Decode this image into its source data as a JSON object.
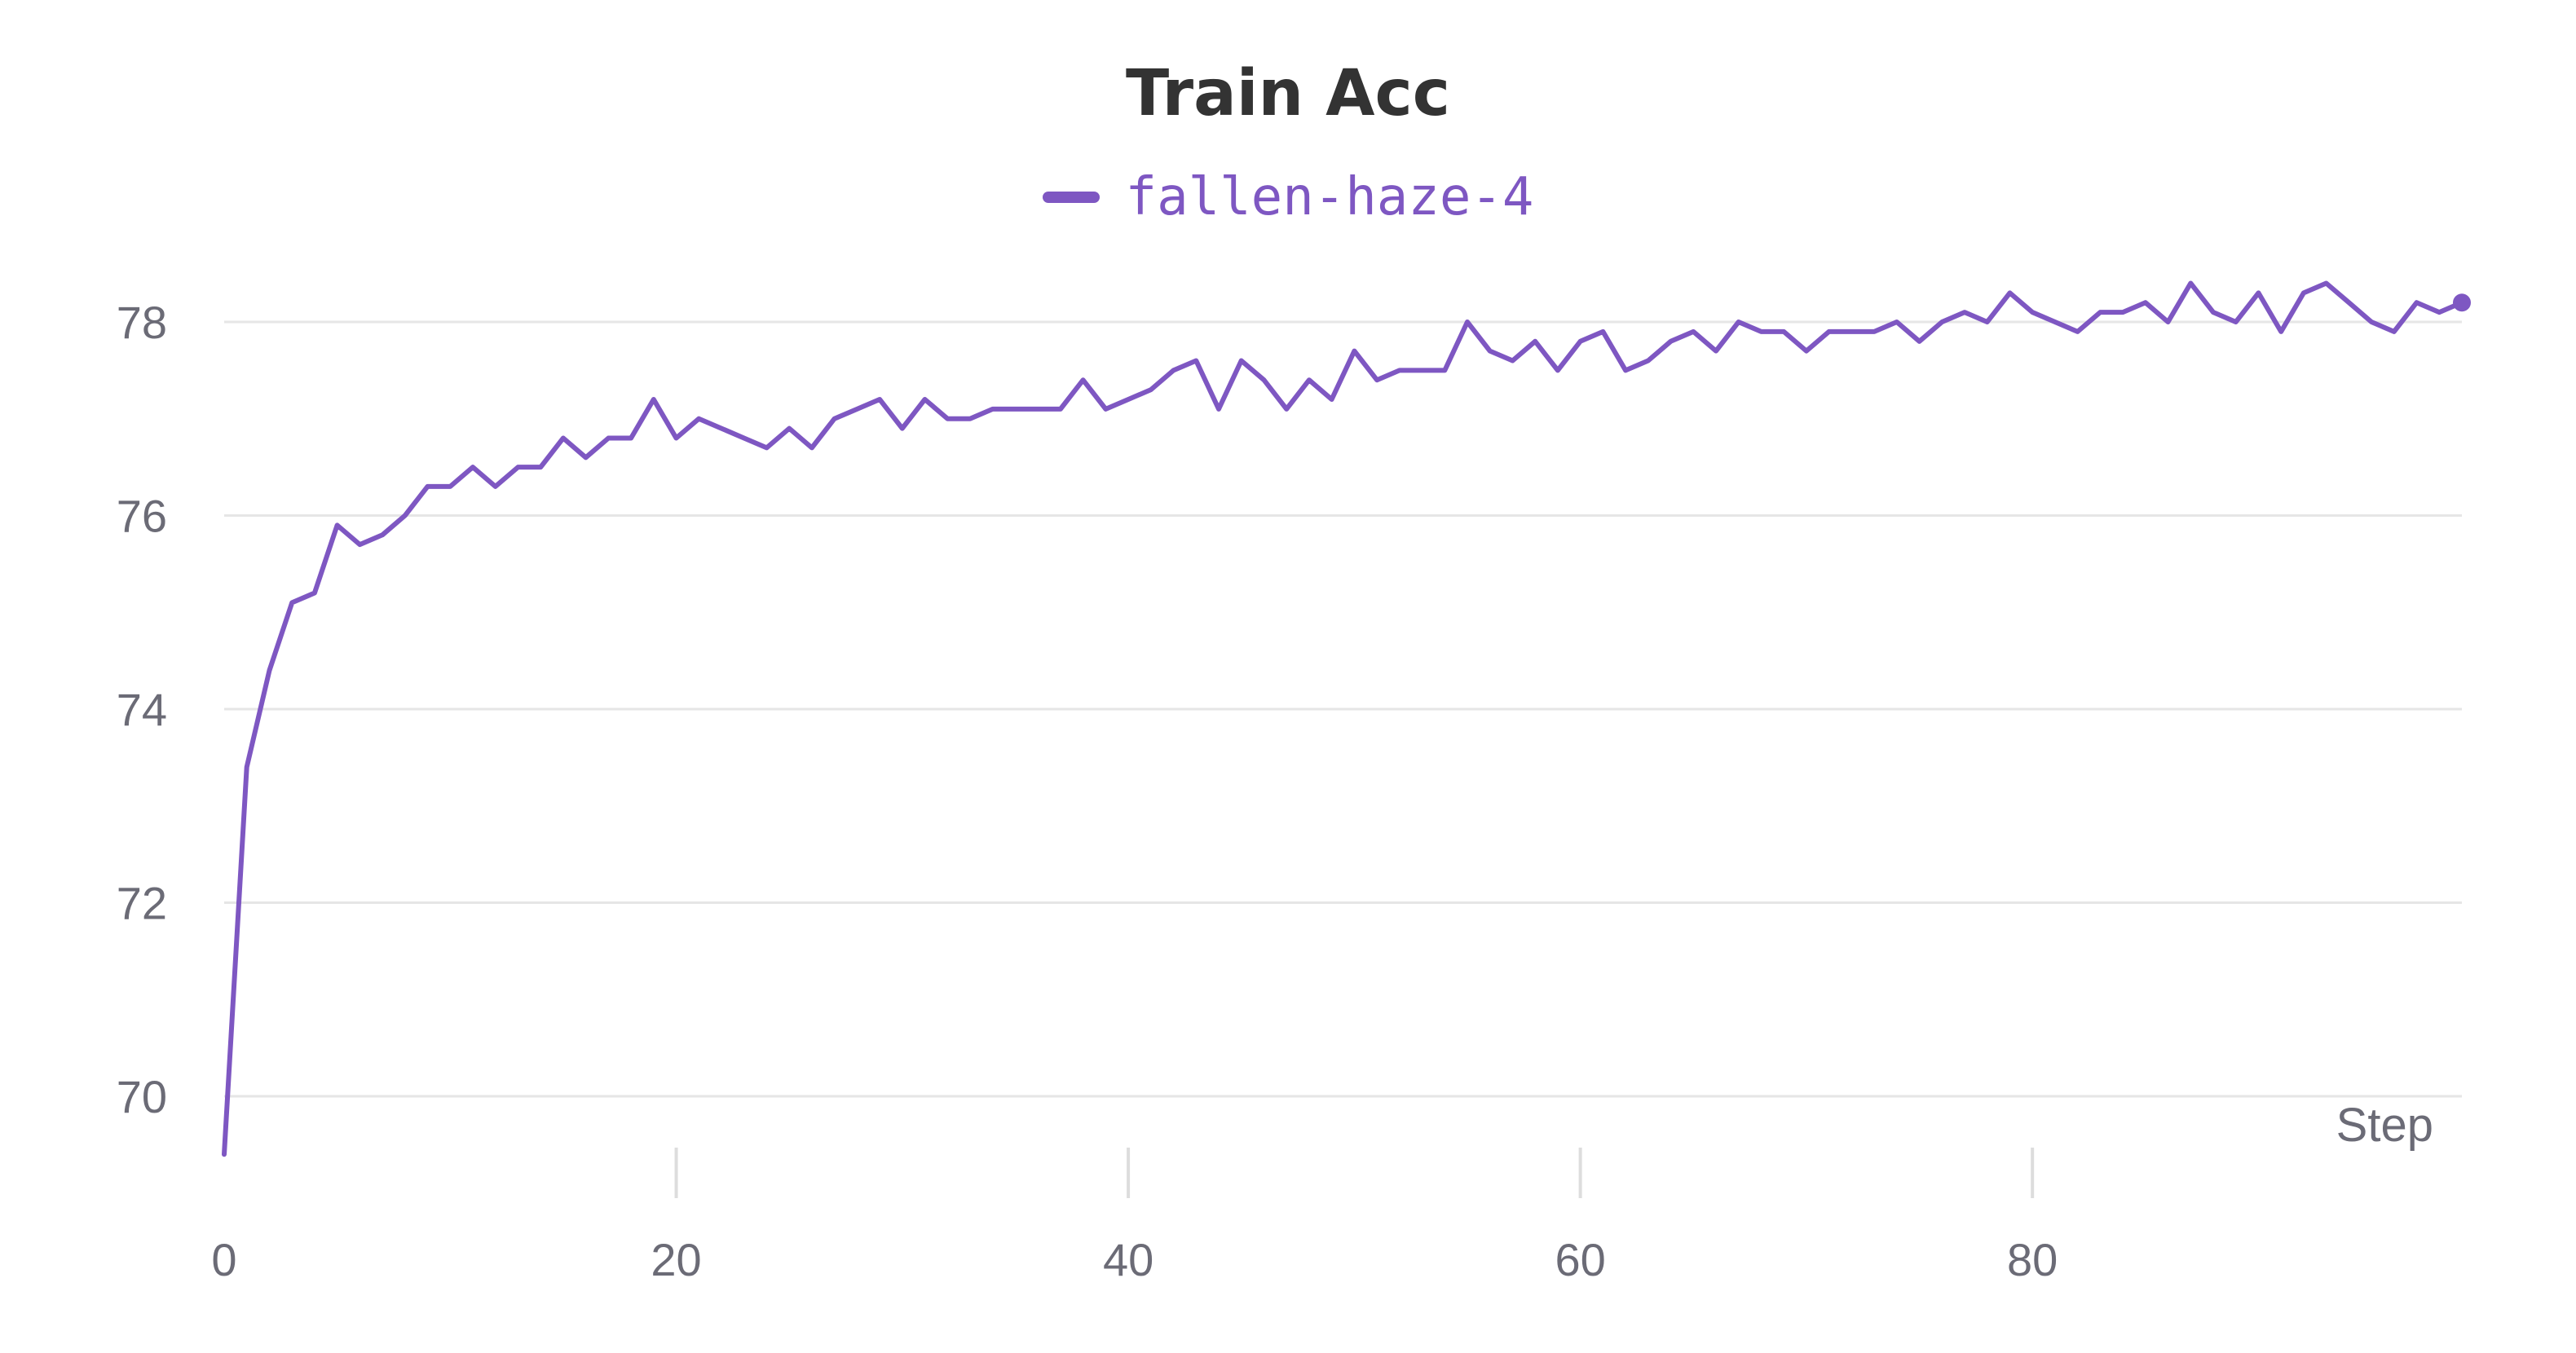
{
  "chart_data": {
    "type": "line",
    "title": "Train Acc",
    "xlabel": "Step",
    "ylabel": "",
    "xlim": [
      0,
      99
    ],
    "ylim": [
      69.2,
      78.8
    ],
    "x_ticks": [
      0,
      20,
      40,
      60,
      80
    ],
    "y_ticks": [
      70,
      72,
      74,
      76,
      78
    ],
    "grid": true,
    "legend_position": "top-center",
    "series": [
      {
        "name": "fallen-haze-4",
        "color": "#7e57c2",
        "x": [
          0,
          1,
          2,
          3,
          4,
          5,
          6,
          7,
          8,
          9,
          10,
          11,
          12,
          13,
          14,
          15,
          16,
          17,
          18,
          19,
          20,
          21,
          22,
          23,
          24,
          25,
          26,
          27,
          28,
          29,
          30,
          31,
          32,
          33,
          34,
          35,
          36,
          37,
          38,
          39,
          40,
          41,
          42,
          43,
          44,
          45,
          46,
          47,
          48,
          49,
          50,
          51,
          52,
          53,
          54,
          55,
          56,
          57,
          58,
          59,
          60,
          61,
          62,
          63,
          64,
          65,
          66,
          67,
          68,
          69,
          70,
          71,
          72,
          73,
          74,
          75,
          76,
          77,
          78,
          79,
          80,
          81,
          82,
          83,
          84,
          85,
          86,
          87,
          88,
          89,
          90,
          91,
          92,
          93,
          94,
          95,
          96,
          97,
          98,
          99
        ],
        "values": [
          69.4,
          73.4,
          74.4,
          75.1,
          75.2,
          75.9,
          75.7,
          75.8,
          76.0,
          76.3,
          76.3,
          76.5,
          76.3,
          76.5,
          76.5,
          76.8,
          76.6,
          76.8,
          76.8,
          77.2,
          76.8,
          77.0,
          76.9,
          76.8,
          76.7,
          76.9,
          76.7,
          77.0,
          77.1,
          77.2,
          76.9,
          77.2,
          77.0,
          77.0,
          77.1,
          77.1,
          77.1,
          77.1,
          77.4,
          77.1,
          77.2,
          77.3,
          77.5,
          77.6,
          77.1,
          77.6,
          77.4,
          77.1,
          77.4,
          77.2,
          77.7,
          77.4,
          77.5,
          77.5,
          77.5,
          78.0,
          77.7,
          77.6,
          77.8,
          77.5,
          77.8,
          77.9,
          77.5,
          77.6,
          77.8,
          77.9,
          77.7,
          78.0,
          77.9,
          77.9,
          77.7,
          77.9,
          77.9,
          77.9,
          78.0,
          77.8,
          78.0,
          78.1,
          78.0,
          78.3,
          78.1,
          78.0,
          77.9,
          78.1,
          78.1,
          78.2,
          78.0,
          78.4,
          78.1,
          78.0,
          78.3,
          77.9,
          78.3,
          78.4,
          78.2,
          78.0,
          77.9,
          78.2,
          78.1,
          78.2
        ]
      }
    ]
  }
}
